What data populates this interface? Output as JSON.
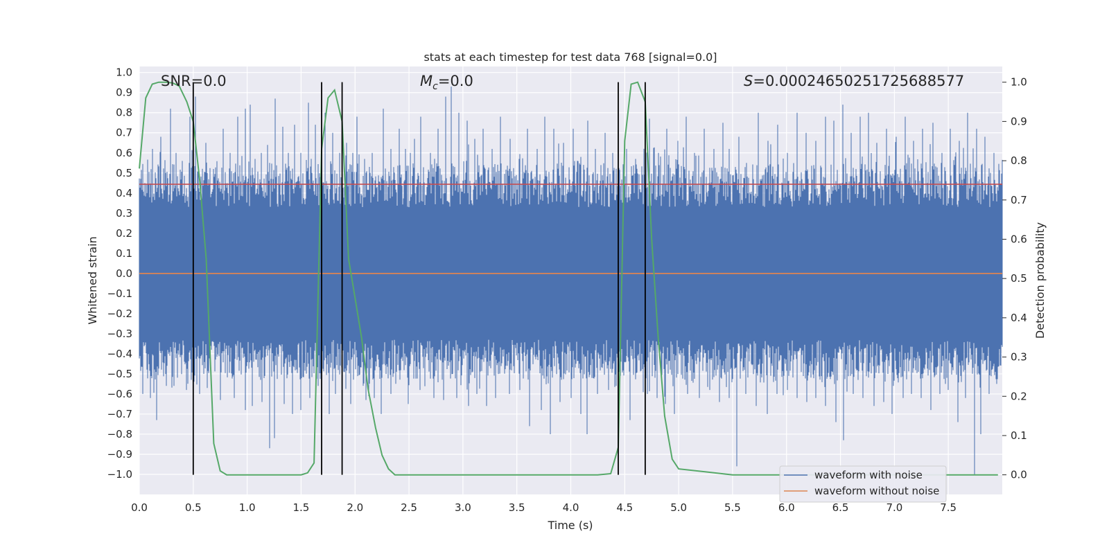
{
  "chart_data": {
    "type": "line",
    "title": "stats at each timestep for test data 768 [signal=0.0]",
    "xlabel": "Time (s)",
    "ylabel": "Whitened strain",
    "y2label": "Detection probability",
    "xlim": [
      0.0,
      8.0
    ],
    "ylim": [
      -1.1,
      1.03
    ],
    "y2lim": [
      -0.05,
      1.04
    ],
    "xticks": [
      "0.0",
      "0.5",
      "1.0",
      "1.5",
      "2.0",
      "2.5",
      "3.0",
      "3.5",
      "4.0",
      "4.5",
      "5.0",
      "5.5",
      "6.0",
      "6.5",
      "7.0",
      "7.5"
    ],
    "yticks": [
      "1.0",
      "0.9",
      "0.8",
      "0.7",
      "0.6",
      "0.5",
      "0.4",
      "0.3",
      "0.2",
      "0.1",
      "0.0",
      "−0.1",
      "−0.2",
      "−0.3",
      "−0.4",
      "−0.5",
      "−0.6",
      "−0.7",
      "−0.8",
      "−0.9",
      "−1.0"
    ],
    "y2ticks": [
      "1.0",
      "0.9",
      "0.8",
      "0.7",
      "0.6",
      "0.5",
      "0.4",
      "0.3",
      "0.2",
      "0.1",
      "0.0"
    ],
    "annotations": {
      "snr": "SNR=0.0",
      "mc_symbol": "M",
      "mc_sub": "c",
      "mc_value": "=0.0",
      "s_symbol": "S",
      "s_value": "=0.00024650251725688577"
    },
    "threshold": 0.74,
    "vlines": [
      0.5,
      1.69,
      1.88,
      4.44,
      4.69
    ],
    "noise_spikes": {
      "upper": [
        [
          0.05,
          0.45
        ],
        [
          0.12,
          0.62
        ],
        [
          0.2,
          0.68
        ],
        [
          0.29,
          0.82
        ],
        [
          0.34,
          0.6
        ],
        [
          0.4,
          0.56
        ],
        [
          0.47,
          0.78
        ],
        [
          0.52,
          0.88
        ],
        [
          0.62,
          0.65
        ],
        [
          0.69,
          0.52
        ],
        [
          0.78,
          0.72
        ],
        [
          0.84,
          0.6
        ],
        [
          0.91,
          0.78
        ],
        [
          0.98,
          0.82
        ],
        [
          1.03,
          0.84
        ],
        [
          1.07,
          0.57
        ],
        [
          1.13,
          0.6
        ],
        [
          1.19,
          0.64
        ],
        [
          1.26,
          0.87
        ],
        [
          1.33,
          0.73
        ],
        [
          1.38,
          0.6
        ],
        [
          1.44,
          0.74
        ],
        [
          1.5,
          0.6
        ],
        [
          1.57,
          0.85
        ],
        [
          1.63,
          0.74
        ],
        [
          1.72,
          0.8
        ],
        [
          1.79,
          0.7
        ],
        [
          1.86,
          0.6
        ],
        [
          1.92,
          0.65
        ],
        [
          2.02,
          0.78
        ],
        [
          2.09,
          0.57
        ],
        [
          2.16,
          0.6
        ],
        [
          2.26,
          0.82
        ],
        [
          2.33,
          0.62
        ],
        [
          2.41,
          0.72
        ],
        [
          2.47,
          0.62
        ],
        [
          2.55,
          0.67
        ],
        [
          2.61,
          0.78
        ],
        [
          2.7,
          0.6
        ],
        [
          2.77,
          0.72
        ],
        [
          2.84,
          0.88
        ],
        [
          2.89,
          0.93
        ],
        [
          2.96,
          0.8
        ],
        [
          3.04,
          0.76
        ],
        [
          3.11,
          0.67
        ],
        [
          3.19,
          0.72
        ],
        [
          3.27,
          0.62
        ],
        [
          3.35,
          0.78
        ],
        [
          3.44,
          0.67
        ],
        [
          3.52,
          0.57
        ],
        [
          3.6,
          0.72
        ],
        [
          3.69,
          0.62
        ],
        [
          3.76,
          0.78
        ],
        [
          3.84,
          0.72
        ],
        [
          3.93,
          0.65
        ],
        [
          4.02,
          0.72
        ],
        [
          4.09,
          0.58
        ],
        [
          4.16,
          0.76
        ],
        [
          4.23,
          0.62
        ],
        [
          4.32,
          0.7
        ],
        [
          4.39,
          0.6
        ],
        [
          4.52,
          0.62
        ],
        [
          4.6,
          0.57
        ],
        [
          4.73,
          0.77
        ],
        [
          4.81,
          0.6
        ],
        [
          4.89,
          0.72
        ],
        [
          4.99,
          0.66
        ],
        [
          5.07,
          0.78
        ],
        [
          5.15,
          0.6
        ],
        [
          5.24,
          0.72
        ],
        [
          5.33,
          0.62
        ],
        [
          5.41,
          0.75
        ],
        [
          5.47,
          0.62
        ],
        [
          5.56,
          0.68
        ],
        [
          5.63,
          0.55
        ],
        [
          5.74,
          0.8
        ],
        [
          5.83,
          0.66
        ],
        [
          5.92,
          0.74
        ],
        [
          6.01,
          0.6
        ],
        [
          6.1,
          0.8
        ],
        [
          6.18,
          0.7
        ],
        [
          6.27,
          0.66
        ],
        [
          6.36,
          0.78
        ],
        [
          6.44,
          0.76
        ],
        [
          6.52,
          0.84
        ],
        [
          6.6,
          0.7
        ],
        [
          6.68,
          0.78
        ],
        [
          6.76,
          0.8
        ],
        [
          6.84,
          0.65
        ],
        [
          6.93,
          0.72
        ],
        [
          7.02,
          0.68
        ],
        [
          7.1,
          0.78
        ],
        [
          7.18,
          0.66
        ],
        [
          7.26,
          0.72
        ],
        [
          7.36,
          0.75
        ],
        [
          7.44,
          0.6
        ],
        [
          7.52,
          0.72
        ],
        [
          7.6,
          0.66
        ],
        [
          7.68,
          0.8
        ],
        [
          7.76,
          0.72
        ],
        [
          7.84,
          0.68
        ],
        [
          7.92,
          0.6
        ]
      ],
      "lower": [
        [
          0.03,
          -0.6
        ],
        [
          0.1,
          -0.62
        ],
        [
          0.16,
          -0.73
        ],
        [
          0.25,
          -0.56
        ],
        [
          0.32,
          -0.56
        ],
        [
          0.44,
          -0.58
        ],
        [
          0.56,
          -0.6
        ],
        [
          0.63,
          -0.57
        ],
        [
          0.75,
          -0.63
        ],
        [
          0.88,
          -0.62
        ],
        [
          0.98,
          -0.68
        ],
        [
          1.05,
          -0.66
        ],
        [
          1.14,
          -0.64
        ],
        [
          1.21,
          -0.87
        ],
        [
          1.25,
          -0.82
        ],
        [
          1.34,
          -0.65
        ],
        [
          1.42,
          -0.7
        ],
        [
          1.5,
          -0.68
        ],
        [
          1.58,
          -0.62
        ],
        [
          1.66,
          -0.56
        ],
        [
          1.76,
          -0.7
        ],
        [
          1.82,
          -0.6
        ],
        [
          1.96,
          -0.65
        ],
        [
          2.1,
          -0.63
        ],
        [
          2.18,
          -0.62
        ],
        [
          2.24,
          -0.7
        ],
        [
          2.33,
          -0.6
        ],
        [
          2.49,
          -0.65
        ],
        [
          2.6,
          -0.58
        ],
        [
          2.73,
          -0.62
        ],
        [
          2.82,
          -0.63
        ],
        [
          2.94,
          -0.62
        ],
        [
          3.05,
          -0.66
        ],
        [
          3.13,
          -0.6
        ],
        [
          3.22,
          -0.66
        ],
        [
          3.3,
          -0.62
        ],
        [
          3.43,
          -0.6
        ],
        [
          3.53,
          -0.58
        ],
        [
          3.62,
          -0.76
        ],
        [
          3.73,
          -0.68
        ],
        [
          3.81,
          -0.8
        ],
        [
          3.9,
          -0.64
        ],
        [
          4.0,
          -0.62
        ],
        [
          4.09,
          -0.7
        ],
        [
          4.15,
          -0.8
        ],
        [
          4.25,
          -0.6
        ],
        [
          4.35,
          -0.58
        ],
        [
          4.42,
          -0.56
        ],
        [
          4.55,
          -0.73
        ],
        [
          4.71,
          -0.6
        ],
        [
          4.8,
          -0.62
        ],
        [
          4.88,
          -0.65
        ],
        [
          4.96,
          -0.7
        ],
        [
          5.08,
          -0.6
        ],
        [
          5.19,
          -0.62
        ],
        [
          5.29,
          -0.58
        ],
        [
          5.38,
          -0.64
        ],
        [
          5.47,
          -0.62
        ],
        [
          5.54,
          -0.96
        ],
        [
          5.62,
          -0.6
        ],
        [
          5.72,
          -0.66
        ],
        [
          5.82,
          -0.7
        ],
        [
          5.91,
          -0.6
        ],
        [
          6.01,
          -0.58
        ],
        [
          6.1,
          -0.62
        ],
        [
          6.19,
          -0.64
        ],
        [
          6.27,
          -0.62
        ],
        [
          6.36,
          -0.66
        ],
        [
          6.46,
          -0.74
        ],
        [
          6.53,
          -0.83
        ],
        [
          6.62,
          -0.6
        ],
        [
          6.71,
          -0.62
        ],
        [
          6.81,
          -0.66
        ],
        [
          6.9,
          -0.64
        ],
        [
          6.98,
          -0.7
        ],
        [
          7.08,
          -0.62
        ],
        [
          7.16,
          -0.6
        ],
        [
          7.25,
          -0.62
        ],
        [
          7.34,
          -0.68
        ],
        [
          7.42,
          -0.6
        ],
        [
          7.5,
          -0.58
        ],
        [
          7.59,
          -0.74
        ],
        [
          7.66,
          -0.62
        ],
        [
          7.74,
          -1.0
        ],
        [
          7.8,
          -0.8
        ],
        [
          7.88,
          -0.6
        ],
        [
          7.95,
          -0.55
        ]
      ]
    },
    "series": [
      {
        "name": "waveform with noise",
        "color": "#4c72b0"
      },
      {
        "name": "waveform without noise",
        "color": "#dd8452",
        "x": [
          0.0,
          8.0
        ],
        "y": [
          0.0,
          0.0
        ]
      },
      {
        "color": "#55a868",
        "axis": "y2",
        "x": [
          0.0,
          0.06,
          0.12,
          0.18,
          0.25,
          0.31,
          0.37,
          0.44,
          0.5,
          0.56,
          0.62,
          0.69,
          0.75,
          0.81,
          0.87,
          1.0,
          1.25,
          1.5,
          1.56,
          1.62,
          1.69,
          1.75,
          1.81,
          1.88,
          1.94,
          2.0,
          2.06,
          2.12,
          2.19,
          2.25,
          2.31,
          2.37,
          2.5,
          3.0,
          3.5,
          4.0,
          4.25,
          4.37,
          4.44,
          4.5,
          4.56,
          4.62,
          4.69,
          4.75,
          4.81,
          4.87,
          4.94,
          5.0,
          5.5,
          6.0,
          6.5,
          7.0,
          7.5,
          7.96
        ],
        "y": [
          0.78,
          0.96,
          0.995,
          1.0,
          1.0,
          0.998,
          0.99,
          0.95,
          0.9,
          0.75,
          0.55,
          0.08,
          0.01,
          0.0,
          0.0,
          0.0,
          0.0,
          0.0,
          0.005,
          0.03,
          0.83,
          0.96,
          0.98,
          0.9,
          0.55,
          0.45,
          0.35,
          0.22,
          0.12,
          0.05,
          0.015,
          0.0,
          0.0,
          0.0,
          0.0,
          0.0,
          0.0,
          0.003,
          0.07,
          0.85,
          0.995,
          1.0,
          0.95,
          0.6,
          0.35,
          0.15,
          0.04,
          0.015,
          0.0,
          0.0,
          0.0,
          0.0,
          0.0,
          0.0
        ]
      }
    ],
    "legend": {
      "placement": "lower-right",
      "entries": [
        "waveform with noise",
        "waveform without noise"
      ]
    },
    "colors": {
      "background": "#eaeaf2",
      "grid": "#ffffff",
      "threshold": "#c44e52",
      "vline": "#000000"
    }
  }
}
